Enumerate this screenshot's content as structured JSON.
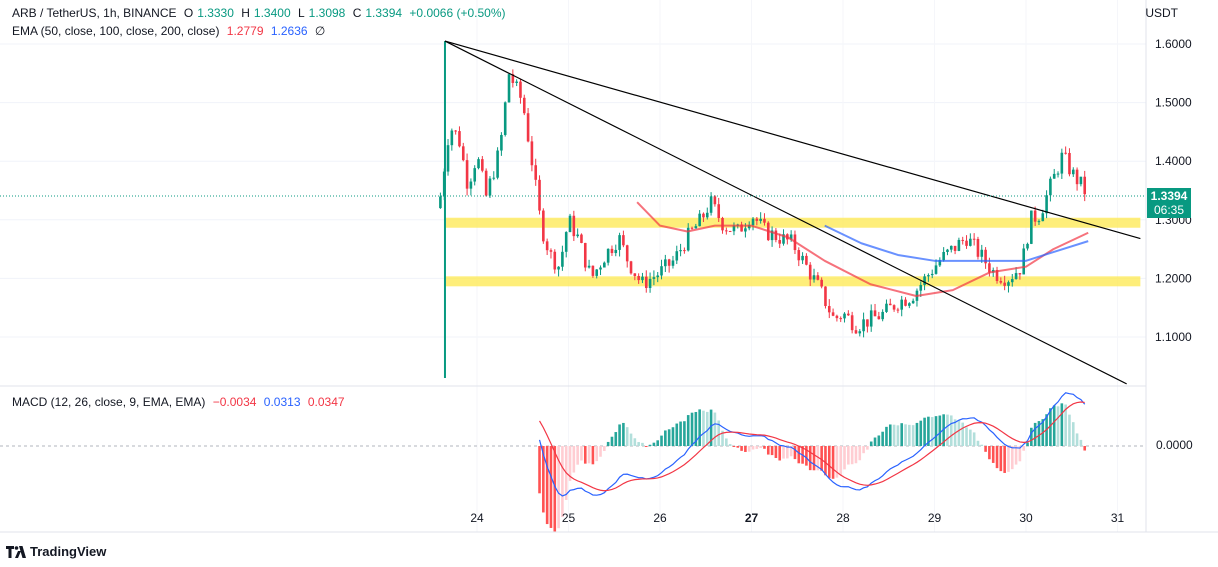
{
  "legend": {
    "symbol": "ARB / TetherUS, 1h, BINANCE",
    "o_label": "O",
    "o_value": "1.3330",
    "h_label": "H",
    "h_value": "1.3400",
    "l_label": "L",
    "l_value": "1.3098",
    "c_label": "C",
    "c_value": "1.3394",
    "change": "+0.0066 (+0.50%)",
    "ema_label": "EMA (50, close, 100, close, 200, close)",
    "ema50_value": "1.2779",
    "ema100_value": "1.2636",
    "ema200_value": "∅"
  },
  "macd_legend": {
    "label": "MACD (12, 26, close, 9, EMA, EMA)",
    "hist_value": "−0.0034",
    "macd_value": "0.0313",
    "signal_value": "0.0347"
  },
  "price_axis": {
    "currency": "USDT",
    "ticks": [
      "1.6000",
      "1.5000",
      "1.4000",
      "1.3000",
      "1.2000",
      "1.1000"
    ],
    "macd_tick": "0.0000",
    "last_price": "1.3394",
    "countdown": "06:35"
  },
  "time_axis": {
    "ticks": [
      "24",
      "25",
      "26",
      "27",
      "28",
      "29",
      "30",
      "31"
    ],
    "bold": [
      "27"
    ]
  },
  "branding": {
    "name": "TradingView"
  },
  "colors": {
    "up": "#089981",
    "down": "#f23645",
    "ema50": "#f23645",
    "ema100": "#2962ff",
    "macd": "#2962ff",
    "signal": "#f23645",
    "zone": "#fde84e",
    "trendline": "#000000"
  },
  "chart_data": {
    "type": "candlestick",
    "symbol": "ARB / TetherUS",
    "interval": "1h",
    "exchange": "BINANCE",
    "x_range_days": [
      23.6,
      31.2
    ],
    "ylim": [
      1.03,
      1.63
    ],
    "last": {
      "open": 1.333,
      "high": 1.34,
      "low": 1.3098,
      "close": 1.3394,
      "change": 0.0066,
      "change_pct": 0.5
    },
    "close_path": [
      [
        23.6,
        1.34
      ],
      [
        23.7,
        1.46
      ],
      [
        23.8,
        1.44
      ],
      [
        23.9,
        1.36
      ],
      [
        24.0,
        1.41
      ],
      [
        24.1,
        1.34
      ],
      [
        24.25,
        1.42
      ],
      [
        24.35,
        1.55
      ],
      [
        24.5,
        1.5
      ],
      [
        24.6,
        1.4
      ],
      [
        24.7,
        1.29
      ],
      [
        24.8,
        1.24
      ],
      [
        24.9,
        1.22
      ],
      [
        25.0,
        1.3
      ],
      [
        25.1,
        1.27
      ],
      [
        25.25,
        1.2
      ],
      [
        25.4,
        1.24
      ],
      [
        25.55,
        1.27
      ],
      [
        25.65,
        1.23
      ],
      [
        25.8,
        1.19
      ],
      [
        26.0,
        1.21
      ],
      [
        26.15,
        1.23
      ],
      [
        26.3,
        1.27
      ],
      [
        26.45,
        1.3
      ],
      [
        26.55,
        1.33
      ],
      [
        26.7,
        1.29
      ],
      [
        26.85,
        1.28
      ],
      [
        27.0,
        1.31
      ],
      [
        27.15,
        1.28
      ],
      [
        27.3,
        1.27
      ],
      [
        27.45,
        1.26
      ],
      [
        27.6,
        1.22
      ],
      [
        27.75,
        1.18
      ],
      [
        27.9,
        1.13
      ],
      [
        28.0,
        1.14
      ],
      [
        28.15,
        1.12
      ],
      [
        28.3,
        1.13
      ],
      [
        28.45,
        1.14
      ],
      [
        28.6,
        1.16
      ],
      [
        28.75,
        1.17
      ],
      [
        28.9,
        1.2
      ],
      [
        29.05,
        1.23
      ],
      [
        29.2,
        1.25
      ],
      [
        29.35,
        1.27
      ],
      [
        29.5,
        1.24
      ],
      [
        29.65,
        1.21
      ],
      [
        29.8,
        1.2
      ],
      [
        29.95,
        1.22
      ],
      [
        30.05,
        1.3
      ],
      [
        30.15,
        1.31
      ],
      [
        30.3,
        1.37
      ],
      [
        30.4,
        1.41
      ],
      [
        30.5,
        1.38
      ],
      [
        30.6,
        1.36
      ],
      [
        30.68,
        1.3394
      ]
    ],
    "ema50": [
      [
        25.75,
        1.33
      ],
      [
        26.0,
        1.29
      ],
      [
        26.3,
        1.28
      ],
      [
        26.6,
        1.29
      ],
      [
        27.0,
        1.29
      ],
      [
        27.4,
        1.27
      ],
      [
        27.8,
        1.23
      ],
      [
        28.3,
        1.19
      ],
      [
        28.8,
        1.17
      ],
      [
        29.2,
        1.18
      ],
      [
        29.6,
        1.21
      ],
      [
        30.0,
        1.22
      ],
      [
        30.3,
        1.25
      ],
      [
        30.68,
        1.2779
      ]
    ],
    "ema100": [
      [
        27.8,
        1.29
      ],
      [
        28.2,
        1.26
      ],
      [
        28.6,
        1.24
      ],
      [
        29.0,
        1.23
      ],
      [
        29.5,
        1.23
      ],
      [
        30.0,
        1.23
      ],
      [
        30.3,
        1.245
      ],
      [
        30.68,
        1.2636
      ]
    ],
    "support_zones": [
      1.295,
      1.195
    ],
    "trendlines": [
      [
        [
          23.65,
          1.605
        ],
        [
          31.25,
          1.268
        ]
      ],
      [
        [
          23.65,
          1.605
        ],
        [
          31.1,
          1.02
        ]
      ]
    ],
    "macd": {
      "label": "MACD (12, 26, close, 9, EMA, EMA)",
      "histogram_last": -0.0034,
      "macd_last": 0.0313,
      "signal_last": 0.0347,
      "zero_level": 0
    }
  }
}
